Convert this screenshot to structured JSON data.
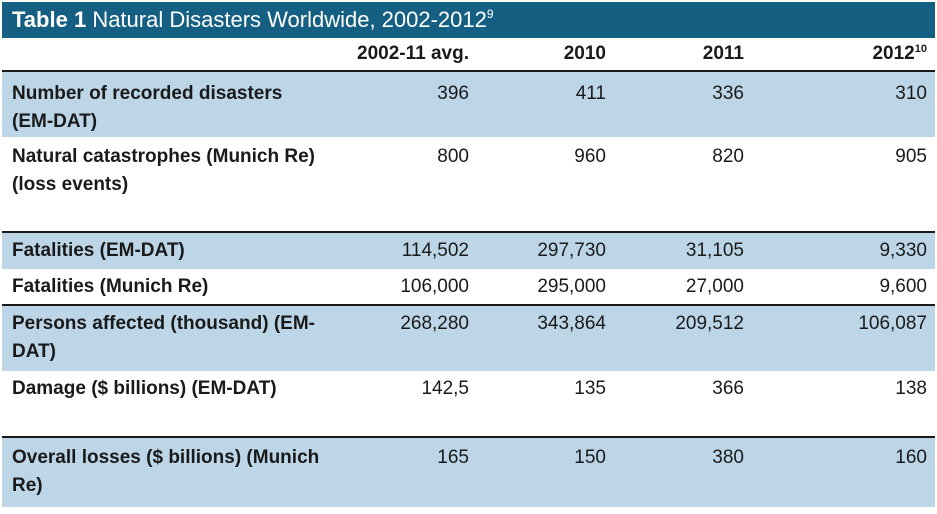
{
  "title": {
    "label": "Table 1",
    "text": "Natural Disasters Worldwide, 2002-2012",
    "footnote": "9"
  },
  "columns": [
    {
      "text": "2002-11 avg.",
      "sup": ""
    },
    {
      "text": "2010",
      "sup": ""
    },
    {
      "text": "2011",
      "sup": ""
    },
    {
      "text": "2012",
      "sup": "10"
    }
  ],
  "rows": [
    {
      "label": "Number of recorded disasters (EM-DAT)",
      "values": [
        "396",
        "411",
        "336",
        "310"
      ]
    },
    {
      "label": "Natural catastrophes (Munich Re) (loss events)",
      "values": [
        "800",
        "960",
        "820",
        "905"
      ]
    },
    {
      "label": "Fatalities (EM-DAT)",
      "values": [
        "114,502",
        "297,730",
        "31,105",
        "9,330"
      ]
    },
    {
      "label": "Fatalities (Munich Re)",
      "values": [
        "106,000",
        "295,000",
        "27,000",
        "9,600"
      ]
    },
    {
      "label": "Persons affected (thousand) (EM-DAT)",
      "values": [
        "268,280",
        "343,864",
        "209,512",
        "106,087"
      ]
    },
    {
      "label": "Damage ($ billions) (EM-DAT)",
      "values": [
        "142,5",
        "135",
        "366",
        "138"
      ]
    },
    {
      "label": "Overall losses ($ billions) (Munich Re)",
      "values": [
        "165",
        "150",
        "380",
        "160"
      ]
    }
  ],
  "colors": {
    "title_bg": "#156082",
    "row_shade": "#bcd6e8",
    "rule": "#1a1a1a"
  }
}
